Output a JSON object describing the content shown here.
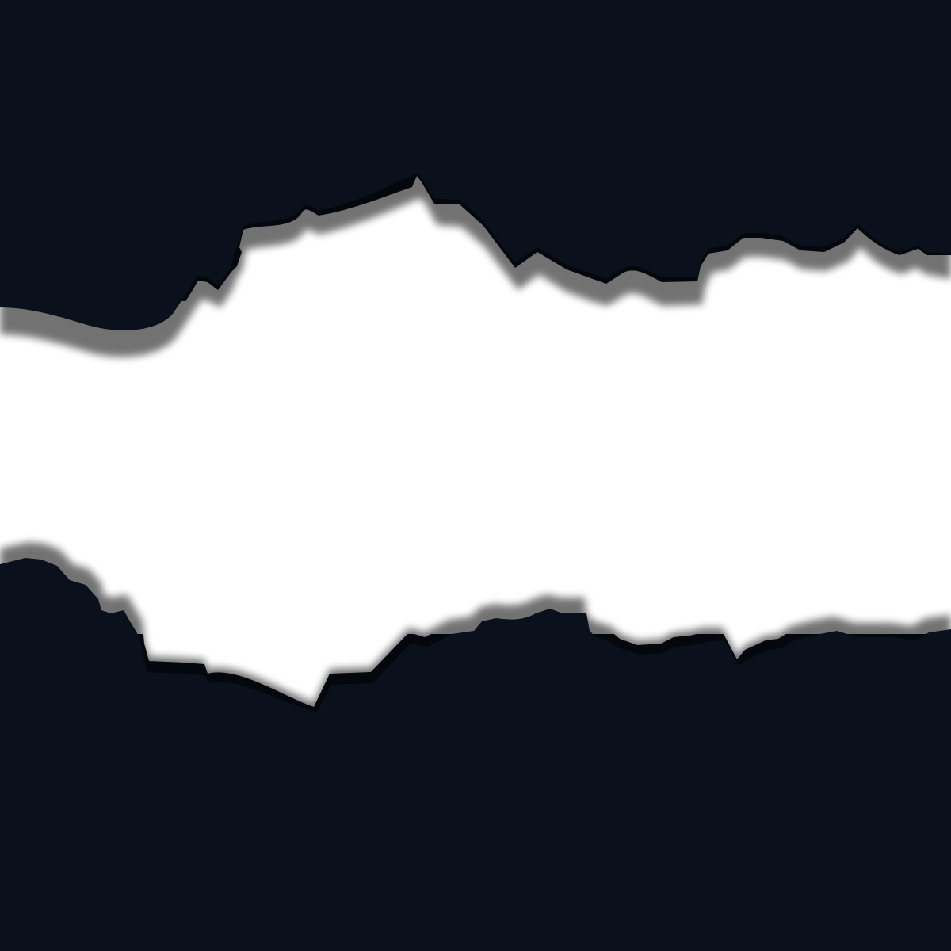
{
  "colors": {
    "background": "#0a111c",
    "paper": "#ffffff",
    "shadow": "#000000"
  }
}
